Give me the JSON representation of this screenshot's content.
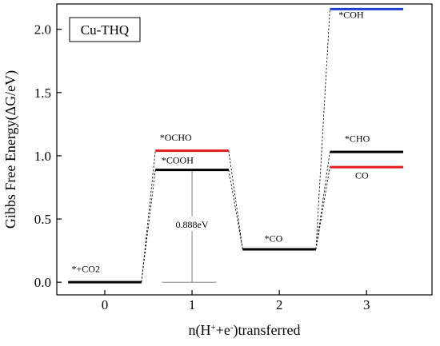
{
  "chart_data": {
    "type": "line",
    "title": "",
    "inset_label": "Cu-THQ",
    "xlabel": {
      "prefix": "n(H",
      "sup1": "+",
      "middle": "+e",
      "sup2": "-",
      "suffix": ")transferred"
    },
    "ylabel": "Gibbs Free Energy(ΔG/eV)",
    "xlim": [
      -0.55,
      3.75
    ],
    "ylim": [
      -0.1,
      2.2
    ],
    "x_ticks": [
      0,
      1,
      2,
      3
    ],
    "x_tick_labels": [
      "0",
      "1",
      "2",
      "3"
    ],
    "y_ticks": [
      0.0,
      0.5,
      1.0,
      1.5,
      2.0
    ],
    "y_tick_labels": [
      "0.0",
      "0.5",
      "1.0",
      "1.5",
      "2.0"
    ],
    "half_width": 0.42,
    "colors": {
      "black": "#000000",
      "red": "#e41a1c",
      "blue": "#1f3fd6",
      "gray": "#777777"
    },
    "levels": [
      {
        "name": "*+CO2",
        "x": 0,
        "y": 0.0,
        "color": "black"
      },
      {
        "name": "*COOH",
        "x": 1,
        "y": 0.888,
        "color": "black"
      },
      {
        "name": "*OCHO",
        "x": 1,
        "y": 1.04,
        "color": "red"
      },
      {
        "name": "*CO",
        "x": 2,
        "y": 0.26,
        "color": "black"
      },
      {
        "name": "*CHO",
        "x": 3,
        "y": 1.03,
        "color": "black"
      },
      {
        "name": "CO",
        "x": 3,
        "y": 0.91,
        "color": "red"
      },
      {
        "name": "*COH",
        "x": 3,
        "y": 2.16,
        "color": "blue"
      }
    ],
    "connectors": [
      [
        "*+CO2",
        "*COOH"
      ],
      [
        "*+CO2",
        "*OCHO"
      ],
      [
        "*COOH",
        "*CO"
      ],
      [
        "*OCHO",
        "*CO"
      ],
      [
        "*CO",
        "*CHO"
      ],
      [
        "*CO",
        "CO"
      ],
      [
        "*CO",
        "*COH"
      ]
    ],
    "energy_barrier": {
      "x": 1,
      "y_low": 0.0,
      "y_high": 0.888,
      "label": "0.888eV"
    },
    "annotations": [
      {
        "text": "*+CO2",
        "x": -0.38,
        "y": 0.08
      },
      {
        "text": "*OCHO",
        "x": 0.63,
        "y": 1.12
      },
      {
        "text": "*COOH",
        "x": 0.65,
        "y": 0.94
      },
      {
        "text": "*CO",
        "x": 1.83,
        "y": 0.32
      },
      {
        "text": "*COH",
        "x": 2.68,
        "y": 2.09
      },
      {
        "text": "*CHO",
        "x": 2.75,
        "y": 1.11
      },
      {
        "text": "CO",
        "x": 2.87,
        "y": 0.82
      }
    ]
  }
}
